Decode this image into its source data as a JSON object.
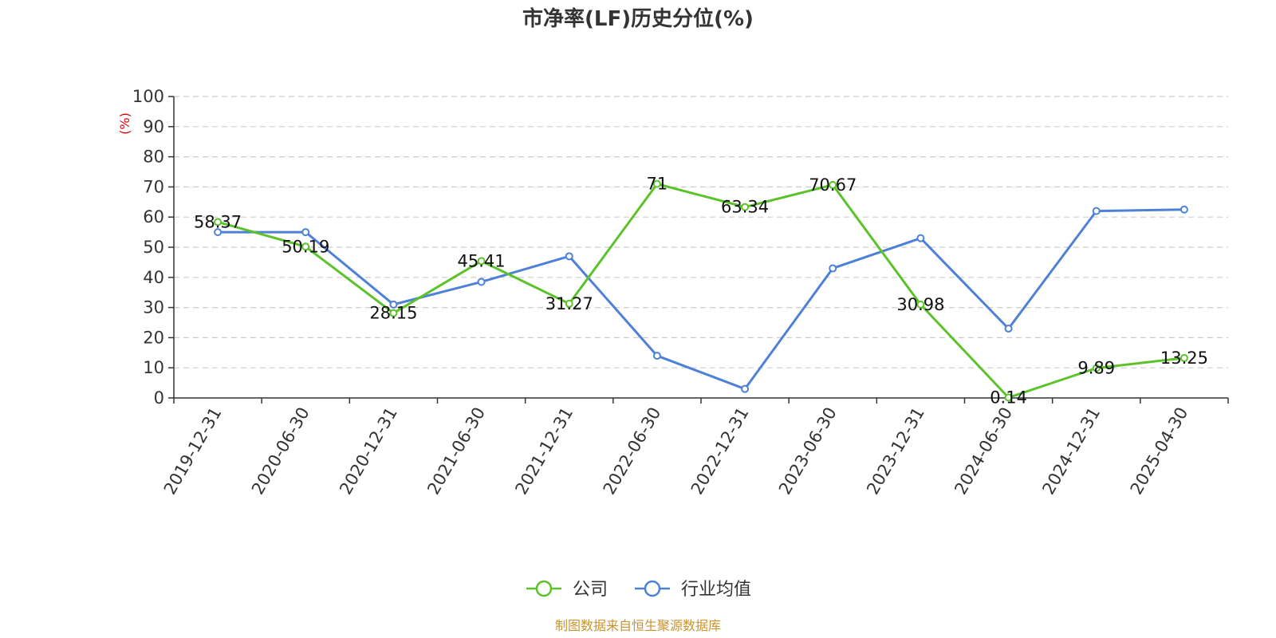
{
  "chart_data": {
    "type": "line",
    "title": "市净率(LF)历史分位(%)",
    "ylabel": "(%)",
    "ylim": [
      0,
      100
    ],
    "yticks": [
      0,
      10,
      20,
      30,
      40,
      50,
      60,
      70,
      80,
      90,
      100
    ],
    "grid": true,
    "legend_position": "bottom",
    "categories": [
      "2019-12-31",
      "2020-06-30",
      "2020-12-31",
      "2021-06-30",
      "2021-12-31",
      "2022-06-30",
      "2022-12-31",
      "2023-06-30",
      "2023-12-31",
      "2024-06-30",
      "2024-12-31",
      "2025-04-30"
    ],
    "series": [
      {
        "name": "公司",
        "color": "#5cc22a",
        "values": [
          58.37,
          50.19,
          28.15,
          45.41,
          31.27,
          71,
          63.34,
          70.67,
          30.98,
          0.14,
          9.89,
          13.25
        ],
        "labels": [
          "58.37",
          "50.19",
          "28.15",
          "45.41",
          "31.27",
          "71",
          "63.34",
          "70.67",
          "30.98",
          "0.14",
          "9.89",
          "13.25"
        ]
      },
      {
        "name": "行业均值",
        "color": "#4f80d8",
        "values": [
          55,
          55,
          31,
          38.5,
          47,
          14,
          3,
          43,
          53,
          23,
          62,
          62.5
        ]
      }
    ],
    "source": "制图数据来自恒生聚源数据库",
    "source_color": "#c8932f",
    "ylabel_color": "#e00000",
    "axis_color": "#333333",
    "grid_color": "#cccccc"
  }
}
